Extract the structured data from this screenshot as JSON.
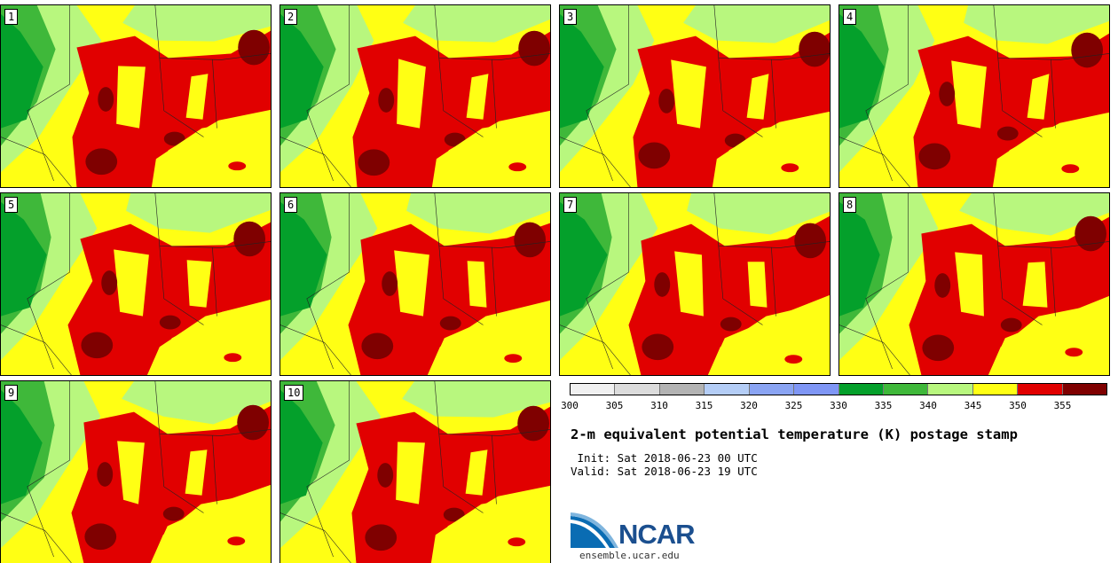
{
  "panels": [
    {
      "label": "1"
    },
    {
      "label": "2"
    },
    {
      "label": "3"
    },
    {
      "label": "4"
    },
    {
      "label": "5"
    },
    {
      "label": "6"
    },
    {
      "label": "7"
    },
    {
      "label": "8"
    },
    {
      "label": "9"
    },
    {
      "label": "10"
    }
  ],
  "colorbar": {
    "colors": [
      "#f0f0f0",
      "#dcdcdc",
      "#b3b3b3",
      "#b4cdf6",
      "#8aa4f3",
      "#7f96f5",
      "#04a02b",
      "#3fb83a",
      "#b8f77e",
      "#ffff14",
      "#e10000",
      "#7f0000"
    ],
    "ticks": [
      "300",
      "305",
      "310",
      "315",
      "320",
      "325",
      "330",
      "335",
      "340",
      "345",
      "350",
      "355"
    ]
  },
  "title": "2-m equivalent potential temperature (K) postage stamp",
  "init": " Init: Sat 2018-06-23 00 UTC",
  "valid": "Valid: Sat 2018-06-23 19 UTC",
  "logo": {
    "text": "NCAR",
    "url": "ensemble.ucar.edu"
  }
}
